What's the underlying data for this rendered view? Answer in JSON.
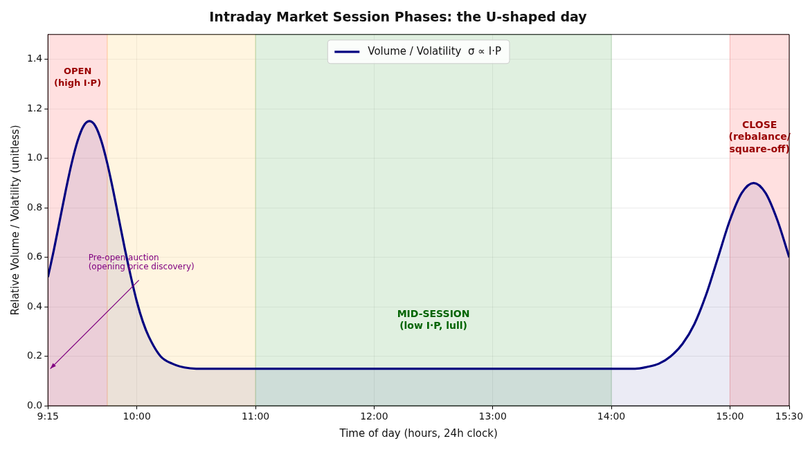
{
  "chart_data": {
    "type": "area",
    "title": "Intraday Market Session Phases: the U-shaped day",
    "xlabel": "Time of day (hours, 24h clock)",
    "ylabel": "Relative Volume / Volatility (unitless)",
    "series": [
      {
        "name": "Volume / Volatility  σ ∝ I·P",
        "color": "#000080",
        "x": [
          9.25,
          9.3,
          9.35,
          9.4,
          9.45,
          9.5,
          9.55,
          9.6,
          9.65,
          9.7,
          9.75,
          9.8,
          9.85,
          9.9,
          9.95,
          10.0,
          10.05,
          10.1,
          10.2,
          10.3,
          10.4,
          10.5,
          11,
          12,
          13,
          14,
          14.2,
          14.3,
          14.4,
          14.5,
          14.6,
          14.7,
          14.8,
          14.9,
          15.0,
          15.1,
          15.2,
          15.3,
          15.4,
          15.5
        ],
        "values": [
          0.52,
          0.63,
          0.75,
          0.87,
          0.98,
          1.07,
          1.13,
          1.15,
          1.13,
          1.07,
          0.98,
          0.87,
          0.75,
          0.63,
          0.52,
          0.42,
          0.34,
          0.28,
          0.2,
          0.17,
          0.155,
          0.15,
          0.15,
          0.15,
          0.15,
          0.15,
          0.15,
          0.157,
          0.17,
          0.2,
          0.25,
          0.33,
          0.45,
          0.6,
          0.75,
          0.86,
          0.9,
          0.86,
          0.75,
          0.6
        ]
      }
    ],
    "xlim": [
      9.25,
      15.5
    ],
    "xticks": [
      {
        "value": 9.25,
        "label": "9:15"
      },
      {
        "value": 10,
        "label": "10:00"
      },
      {
        "value": 11,
        "label": "11:00"
      },
      {
        "value": 12,
        "label": "12:00"
      },
      {
        "value": 13,
        "label": "13:00"
      },
      {
        "value": 14,
        "label": "14:00"
      },
      {
        "value": 15,
        "label": "15:00"
      },
      {
        "value": 15.5,
        "label": "15:30"
      }
    ],
    "ylim": [
      0,
      1.5
    ],
    "yticks": [
      {
        "value": 0,
        "label": "0.0"
      },
      {
        "value": 0.2,
        "label": "0.2"
      },
      {
        "value": 0.4,
        "label": "0.4"
      },
      {
        "value": 0.6,
        "label": "0.6"
      },
      {
        "value": 0.8,
        "label": "0.8"
      },
      {
        "value": 1.0,
        "label": "1.0"
      },
      {
        "value": 1.2,
        "label": "1.2"
      },
      {
        "value": 1.4,
        "label": "1.4"
      }
    ],
    "bands": [
      {
        "axis": "x",
        "from": 9.25,
        "to": 9.75,
        "color": "#ff9999",
        "label": "OPEN\n(high I·P)"
      },
      {
        "axis": "x",
        "from": 9.75,
        "to": 11,
        "color": "#ffdd99"
      },
      {
        "axis": "x",
        "from": 11,
        "to": 14,
        "color": "#99cc99",
        "label": "MID-SESSION\n(low I·P, lull)"
      },
      {
        "axis": "x",
        "from": 15,
        "to": 15.5,
        "color": "#ff9999",
        "label": "CLOSE\n(rebalance/\nsquare-off)"
      }
    ],
    "annotations": [
      {
        "text": "Pre-open auction\n(opening price discovery)",
        "x": 9.27,
        "y": 0.15
      }
    ],
    "grid": true,
    "legend": "top",
    "marker": "none",
    "line_style": "solid"
  }
}
